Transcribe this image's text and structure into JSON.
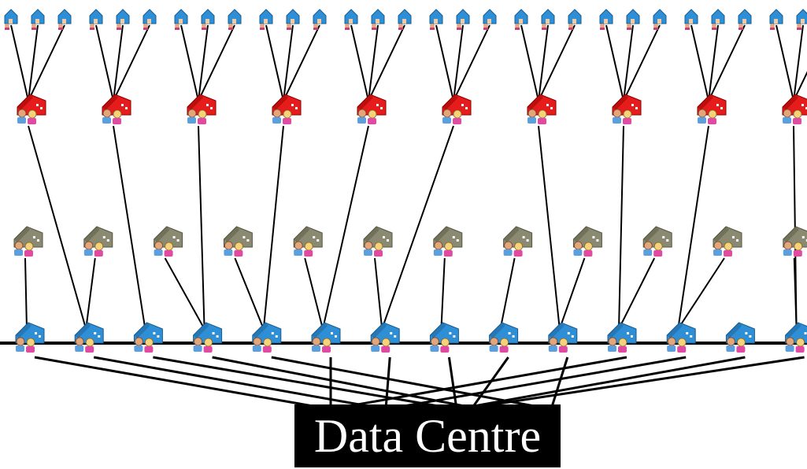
{
  "label": {
    "text": "Data Centre"
  },
  "colors": {
    "leaf_house": "#2e8fd6",
    "red_hub": "#e61b1b",
    "gray_host": "#8a8a72",
    "blue_node": "#2e8fd6",
    "line": "#000000",
    "label_bg": "#000000",
    "label_text": "#ffffff"
  },
  "icons": {
    "leaf": "small-house-icon",
    "red": "red-house-people-icon",
    "gray": "gray-house-people-icon",
    "blue": "blue-house-people-icon"
  }
}
